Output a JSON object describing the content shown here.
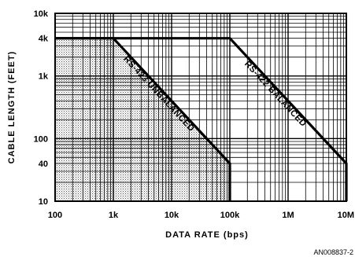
{
  "chart_data": {
    "type": "line",
    "title": "",
    "xlabel": "DATA RATE (bps)",
    "ylabel": "CABLE LENGTH (FEET)",
    "x_scale": "log",
    "y_scale": "log",
    "xlim": [
      100,
      10000000
    ],
    "ylim": [
      10,
      10000
    ],
    "x_ticks": [
      {
        "value": 100,
        "label": "100"
      },
      {
        "value": 1000,
        "label": "1k"
      },
      {
        "value": 10000,
        "label": "10k"
      },
      {
        "value": 100000,
        "label": "100k"
      },
      {
        "value": 1000000,
        "label": "1M"
      },
      {
        "value": 10000000,
        "label": "10M"
      }
    ],
    "y_ticks": [
      {
        "value": 10,
        "label": "10"
      },
      {
        "value": 40,
        "label": "40"
      },
      {
        "value": 100,
        "label": "100"
      },
      {
        "value": 1000,
        "label": "1k"
      },
      {
        "value": 4000,
        "label": "4k"
      },
      {
        "value": 10000,
        "label": "10k"
      }
    ],
    "grid": true,
    "series": [
      {
        "name": "RS-423 UNBALANCED",
        "points": [
          {
            "x": 100,
            "y": 4000
          },
          {
            "x": 1000,
            "y": 4000
          },
          {
            "x": 100000,
            "y": 40
          },
          {
            "x": 100000,
            "y": 10
          }
        ],
        "shaded": true
      },
      {
        "name": "RS-422 BALANCED",
        "points": [
          {
            "x": 100,
            "y": 4000
          },
          {
            "x": 100000,
            "y": 4000
          },
          {
            "x": 10000000,
            "y": 40
          },
          {
            "x": 10000000,
            "y": 10
          }
        ],
        "shaded": false
      }
    ],
    "figure_code": "AN008837-2"
  }
}
